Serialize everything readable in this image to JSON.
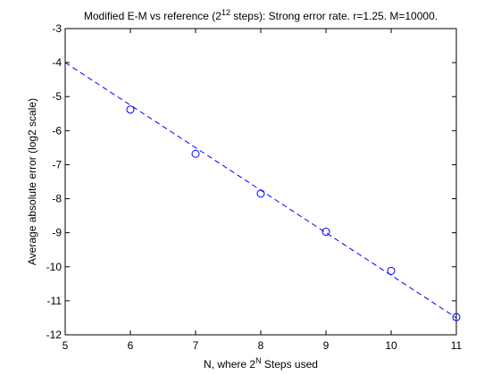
{
  "chart_data": {
    "type": "scatter",
    "title": {
      "prefix": "Modified E-M vs reference (2",
      "superscript": "12",
      "suffix": " steps): Strong error rate. r=1.25. M=10000."
    },
    "xlabel": {
      "prefix": "N, where 2",
      "superscript": "N",
      "suffix": " Steps used"
    },
    "ylabel": "Average absolute error (log2 scale)",
    "xlim": [
      5,
      11
    ],
    "ylim": [
      -12,
      -3
    ],
    "xticks": [
      5,
      6,
      7,
      8,
      9,
      10,
      11
    ],
    "yticks": [
      -12,
      -11,
      -10,
      -9,
      -8,
      -7,
      -6,
      -5,
      -4,
      -3
    ],
    "grid": false,
    "series": [
      {
        "kind": "markers",
        "marker": "circle",
        "color": "#0000ff",
        "x": [
          6,
          7,
          8,
          9,
          10,
          11
        ],
        "y": [
          -5.38,
          -6.68,
          -7.85,
          -8.97,
          -10.12,
          -11.48
        ]
      },
      {
        "kind": "line",
        "style": "dashed",
        "color": "#0000ff",
        "x": [
          5,
          11
        ],
        "y": [
          -4.0,
          -11.5
        ]
      }
    ]
  }
}
